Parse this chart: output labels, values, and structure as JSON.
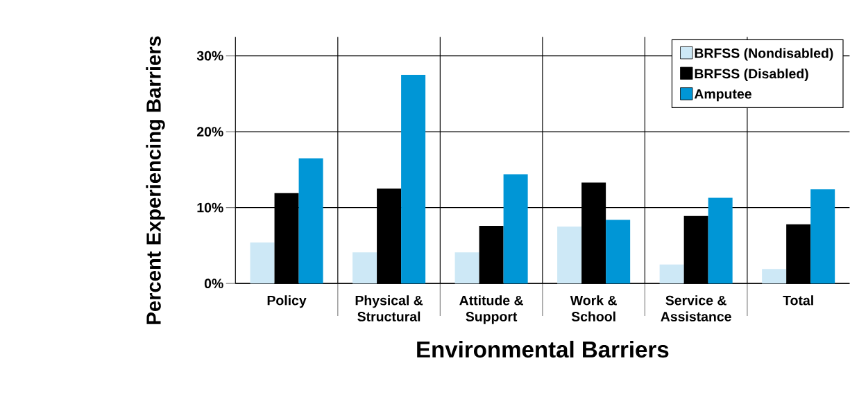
{
  "chart_data": {
    "type": "bar",
    "xlabel": "Environmental Barriers",
    "ylabel": "Percent Experiencing Barriers",
    "categories": [
      "Policy",
      "Physical &\nStructural",
      "Attitude &\nSupport",
      "Work &\nSchool",
      "Service &\nAssistance",
      "Total"
    ],
    "series": [
      {
        "name": "BRFSS (Nondisabled)",
        "color": "#cde8f6",
        "values": [
          5.4,
          4.1,
          4.1,
          7.5,
          2.5,
          1.9
        ]
      },
      {
        "name": "BRFSS (Disabled)",
        "color": "#000000",
        "values": [
          11.9,
          12.5,
          7.6,
          13.3,
          8.9,
          7.8
        ]
      },
      {
        "name": "Amputee",
        "color": "#0096d6",
        "values": [
          16.5,
          27.5,
          14.4,
          8.4,
          11.3,
          12.4
        ]
      }
    ],
    "ylim": [
      0,
      32.5
    ],
    "yticks": [
      {
        "value": 0,
        "label": "0%"
      },
      {
        "value": 10,
        "label": "10%"
      },
      {
        "value": 20,
        "label": "20%"
      },
      {
        "value": 30,
        "label": "30%"
      }
    ],
    "grid": true,
    "legend": "top right"
  }
}
